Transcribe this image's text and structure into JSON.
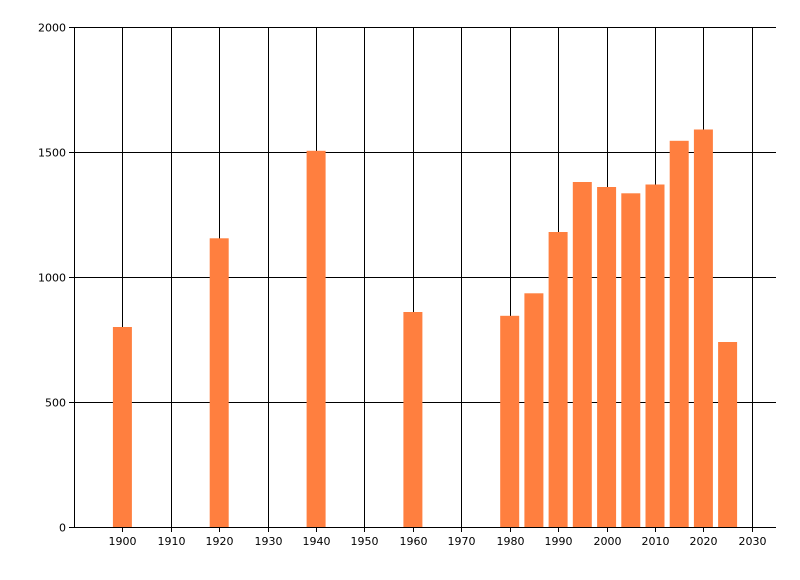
{
  "chart_data": {
    "type": "bar",
    "title": "",
    "xlabel": "",
    "ylabel": "",
    "x": [
      1900,
      1920,
      1940,
      1960,
      1980,
      1985,
      1990,
      1995,
      2000,
      2005,
      2010,
      2015,
      2020,
      2025
    ],
    "values": [
      800,
      1155,
      1505,
      860,
      845,
      935,
      1180,
      1380,
      1360,
      1335,
      1370,
      1545,
      1590,
      740
    ],
    "xlim": [
      1890,
      2035
    ],
    "ylim": [
      0,
      2000
    ],
    "x_ticks": [
      1900,
      1910,
      1920,
      1930,
      1940,
      1950,
      1960,
      1970,
      1980,
      1990,
      2000,
      2010,
      2020,
      2030
    ],
    "y_ticks": [
      0,
      500,
      1000,
      1500,
      2000
    ],
    "grid": true,
    "bar_color": "#ff7f3f",
    "grid_color": "#000000"
  }
}
